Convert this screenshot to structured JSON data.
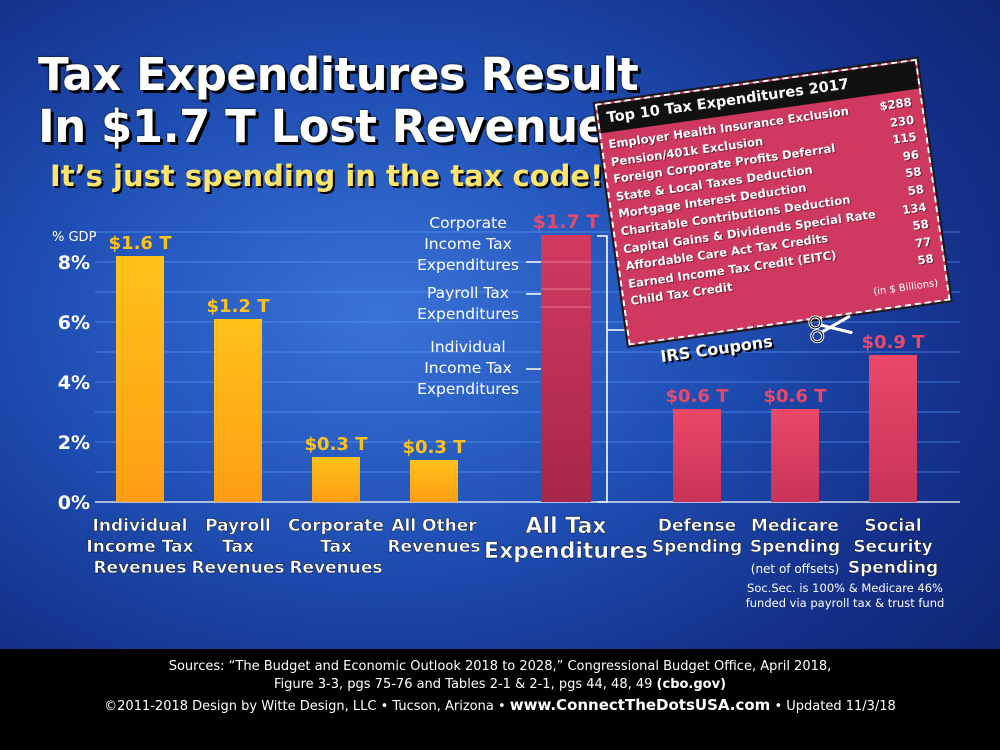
{
  "title_line1": "Tax Expenditures Result",
  "title_line2": "In $1.7 T Lost Revenue",
  "subtitle": "It’s just spending in the tax code!",
  "chart_data": {
    "type": "bar",
    "ylabel": "% GDP",
    "ylim": [
      0,
      8
    ],
    "y_ticks": [
      "0%",
      "2%",
      "4%",
      "6%",
      "8%"
    ],
    "grid": true,
    "categories": [
      [
        "Individual",
        "Income Tax",
        "Revenues"
      ],
      [
        "Payroll",
        "Tax",
        "Revenues"
      ],
      [
        "Corporate",
        "Tax",
        "Revenues"
      ],
      [
        "All Other",
        "Revenues"
      ],
      [
        "All Tax",
        "Expenditures"
      ],
      [
        "Defense",
        "Spending"
      ],
      [
        "Medicare",
        "Spending"
      ],
      [
        "Social",
        "Security",
        "Spending"
      ]
    ],
    "values": [
      8.2,
      6.1,
      1.5,
      1.4,
      8.9,
      3.1,
      3.1,
      4.9
    ],
    "data_labels": [
      "$1.6 T",
      "$1.2 T",
      "$0.3 T",
      "$0.3 T",
      "$1.7 T",
      "$0.6 T",
      "$0.6 T",
      "$0.9 T"
    ],
    "colors": [
      "#ffb11a",
      "#ffb11a",
      "#ffb11a",
      "#ffb11a",
      "#c52e58",
      "#e64565",
      "#e64565",
      "#e64565"
    ],
    "category_notes": {
      "6": "(net of offsets)"
    },
    "stack_segments": [
      {
        "label": [
          "Corporate",
          "Income Tax",
          "Expenditures"
        ],
        "from": 7.1,
        "to": 8.9
      },
      {
        "label": [
          "Payroll Tax",
          "Expenditures"
        ],
        "from": 6.5,
        "to": 7.1
      },
      {
        "label": [
          "Individual",
          "Income Tax",
          "Expenditures"
        ],
        "from": 0,
        "to": 6.5
      }
    ]
  },
  "coupon": {
    "title": "Top 10 Tax Expenditures 2017",
    "items": [
      {
        "label": "Employer Health Insurance Exclusion",
        "value": "$288"
      },
      {
        "label": "Pension/401k Exclusion",
        "value": "230"
      },
      {
        "label": "Foreign Corporate Profits Deferral",
        "value": "115"
      },
      {
        "label": "State & Local Taxes Deduction",
        "value": "96"
      },
      {
        "label": "Mortgage Interest Deduction",
        "value": "58"
      },
      {
        "label": "Charitable Contributions Deduction",
        "value": "58"
      },
      {
        "label": "Capital Gains & Dividends Special Rate",
        "value": "134"
      },
      {
        "label": "Affordable Care Act Tax Credits",
        "value": "58"
      },
      {
        "label": "Earned Income Tax Credit (EITC)",
        "value": "77"
      },
      {
        "label": "Child Tax Credit",
        "value": "58"
      }
    ],
    "unit": "(in $ Billions)",
    "caption": "IRS Coupons",
    "scissors_icon": "scissors-icon"
  },
  "footnote": "Soc.Sec. is 100% & Medicare 46% funded via payroll tax & trust fund",
  "footer": {
    "sources_line1": "Sources: “The Budget and Economic Outlook 2018 to 2028,” Congressional Budget Office, April 2018,",
    "sources_line2": "Figure 3-3, pgs 75-76 and Tables 2-1 & 2-1, pgs 44, 48, 49",
    "sources_site": "(cbo.gov)",
    "credit": "©2011-2018 Design by Witte Design, LLC • Tucson, Arizona •",
    "url": "www.ConnectTheDotsUSA.com",
    "updated": "• Updated 11/3/18"
  }
}
